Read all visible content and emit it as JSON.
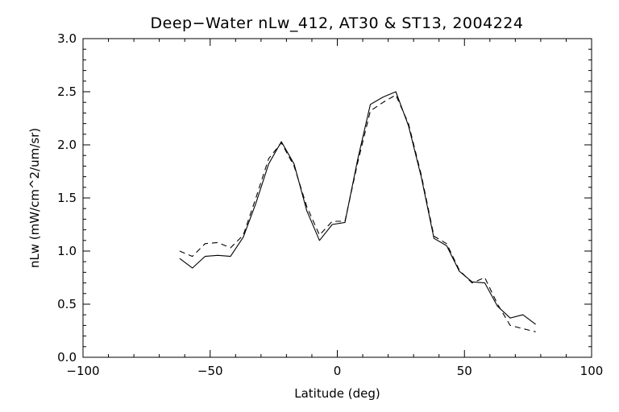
{
  "chart_data": {
    "type": "line",
    "title": "Deep−Water nLw_412, AT30 & ST13, 2004224",
    "xlabel": "Latitude (deg)",
    "ylabel": "nLw (mW/cm^2/um/sr)",
    "xlim": [
      -100,
      100
    ],
    "ylim": [
      0.0,
      3.0
    ],
    "xticks": [
      "−100",
      "−50",
      "0",
      "50",
      "100"
    ],
    "yticks": [
      "0.0",
      "0.5",
      "1.0",
      "1.5",
      "2.0",
      "2.5",
      "3.0"
    ],
    "grid": false,
    "legend": "none",
    "series": [
      {
        "style": "solid",
        "color": "#000000",
        "x": [
          -62,
          -57,
          -52,
          -47,
          -42,
          -37,
          -32,
          -27,
          -22,
          -17,
          -12,
          -7,
          -2,
          3,
          8,
          13,
          18,
          23,
          28,
          33,
          38,
          43,
          48,
          53,
          58,
          63,
          68,
          73,
          78
        ],
        "y": [
          0.93,
          0.84,
          0.95,
          0.96,
          0.95,
          1.13,
          1.45,
          1.82,
          2.03,
          1.82,
          1.38,
          1.1,
          1.25,
          1.27,
          1.86,
          2.38,
          2.45,
          2.5,
          2.18,
          1.7,
          1.12,
          1.05,
          0.81,
          0.71,
          0.7,
          0.48,
          0.37,
          0.4,
          0.31
        ]
      },
      {
        "style": "dashed",
        "color": "#000000",
        "x": [
          -62,
          -57,
          -52,
          -47,
          -42,
          -37,
          -32,
          -27,
          -22,
          -17,
          -12,
          -7,
          -2,
          3,
          8,
          13,
          18,
          23,
          28,
          33,
          38,
          43,
          48,
          53,
          58,
          63,
          68,
          73,
          78
        ],
        "y": [
          1.0,
          0.95,
          1.07,
          1.08,
          1.03,
          1.15,
          1.5,
          1.87,
          2.02,
          1.8,
          1.42,
          1.15,
          1.28,
          1.28,
          1.83,
          2.32,
          2.4,
          2.47,
          2.2,
          1.72,
          1.14,
          1.07,
          0.82,
          0.7,
          0.75,
          0.5,
          0.3,
          0.27,
          0.24
        ]
      }
    ]
  }
}
